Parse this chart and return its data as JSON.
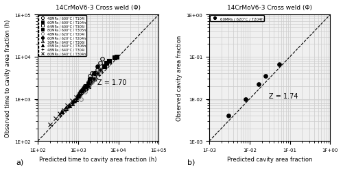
{
  "title": "14CrMoV6-3 Cross weld (Φ)",
  "panel_a": {
    "xlabel": "Predicted time to cavity area fraction (h)",
    "ylabel": "Observed time to cavity area fraction (h)",
    "xlim": [
      100.0,
      100000.0
    ],
    "ylim": [
      100.0,
      100000.0
    ],
    "z_label": "Z = 1.70",
    "z_x": 3000,
    "z_y": 2500,
    "series": [
      {
        "label": "48MPa / 600°C / T104l",
        "marker": "o",
        "filled": false,
        "color": "black",
        "x": [
          1200,
          1400,
          1600,
          1700,
          1800,
          2000,
          2200,
          3000,
          3500,
          4000
        ],
        "y": [
          1400,
          1600,
          1800,
          2000,
          2500,
          3500,
          4000,
          5000,
          7000,
          9000
        ]
      },
      {
        "label": "60MPa / 600°C / T104h",
        "marker": "s",
        "filled": true,
        "color": "black",
        "x": [
          1800,
          2000,
          2500,
          3000,
          3500,
          4500,
          5000,
          6000,
          8000,
          9000
        ],
        "y": [
          2000,
          2500,
          3000,
          4000,
          5000,
          6000,
          7000,
          8000,
          9500,
          10000
        ]
      },
      {
        "label": "64MPa / 600°C / T305l",
        "marker": "s",
        "filled": false,
        "color": "black",
        "x": [
          1500,
          1800,
          2000,
          2500,
          3000
        ],
        "y": [
          1800,
          2200,
          2800,
          3500,
          4000
        ]
      },
      {
        "label": "80MPa / 600°C / T305h",
        "marker": "s",
        "filled": true,
        "color": "black",
        "x": [
          1600,
          2000,
          2800,
          3500
        ],
        "y": [
          2000,
          2800,
          4000,
          5000
        ]
      },
      {
        "label": "48MPa / 620°C / T204l",
        "marker": "o",
        "filled": false,
        "color": "gray",
        "x": [
          1200,
          1500,
          1800,
          2200,
          2500,
          3000,
          3500
        ],
        "y": [
          1000,
          1500,
          2000,
          2500,
          3000,
          4000,
          5000
        ]
      },
      {
        "label": "60MPa / 620°C / T204h",
        "marker": "o",
        "filled": true,
        "color": "black",
        "x": [
          1000,
          1300,
          1600,
          2000,
          2500,
          3000
        ],
        "y": [
          1200,
          1600,
          2000,
          3000,
          4000,
          6000
        ]
      },
      {
        "label": "36MPa / 640°C / T306l",
        "marker": "^",
        "filled": false,
        "color": "black",
        "x": [
          500,
          700,
          900,
          1100,
          1400,
          1800,
          2200
        ],
        "y": [
          600,
          800,
          1000,
          1500,
          2000,
          2500,
          3000
        ]
      },
      {
        "label": "45MPa / 640°C / T306h",
        "marker": "^",
        "filled": true,
        "color": "black",
        "x": [
          400,
          600,
          800,
          1000,
          1200,
          1500
        ],
        "y": [
          500,
          700,
          900,
          1200,
          1600,
          2000
        ]
      },
      {
        "label": "48MPa / 640°C / T304l",
        "marker": "+",
        "filled": false,
        "color": "black",
        "x": [
          350,
          500,
          700,
          900,
          1100,
          1400,
          1800
        ],
        "y": [
          400,
          600,
          800,
          1000,
          1300,
          1700,
          2200
        ]
      },
      {
        "label": "60MPa / 640°C / T304h",
        "marker": "x",
        "filled": false,
        "color": "black",
        "x": [
          200,
          280,
          350,
          450,
          550,
          700,
          900,
          1100,
          1400
        ],
        "y": [
          250,
          350,
          450,
          550,
          700,
          900,
          1100,
          1300,
          1700
        ]
      }
    ]
  },
  "panel_b": {
    "xlabel": "Predicted cavity area fraction",
    "ylabel": "Observed cavity area fraction",
    "xlim": [
      0.001,
      1.0
    ],
    "ylim": [
      0.001,
      1.0
    ],
    "z_label": "Z = 1.74",
    "z_x": 0.03,
    "z_y": 0.012,
    "series": [
      {
        "label": "60MPa / 620°C / T204h",
        "marker": "o",
        "filled": true,
        "color": "black",
        "x": [
          0.003,
          0.008,
          0.017,
          0.025,
          0.055
        ],
        "y": [
          0.004,
          0.01,
          0.022,
          0.035,
          0.065
        ]
      }
    ]
  },
  "dashed_line_color": "black",
  "grid_color": "#cccccc",
  "bg_color": "#f0f0f0"
}
